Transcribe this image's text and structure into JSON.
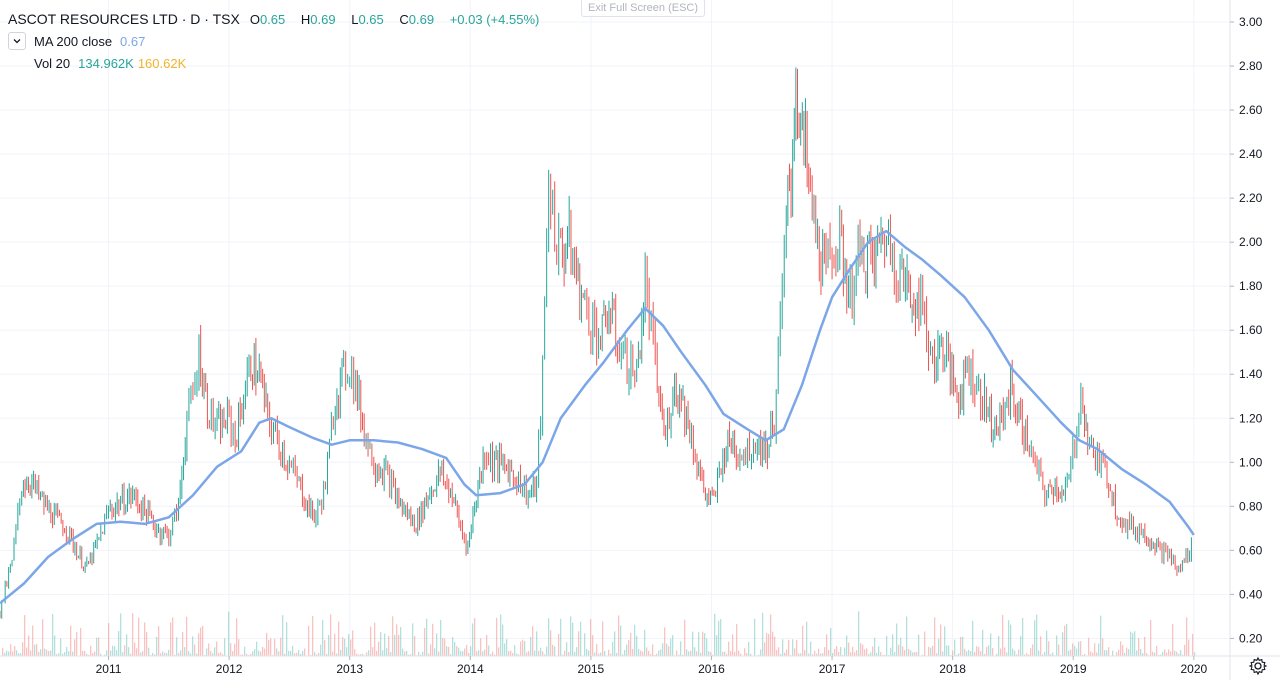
{
  "header": {
    "title": "ASCOT RESOURCES LTD · D · TSX",
    "ohlc": [
      {
        "label": "O",
        "value": "0.65"
      },
      {
        "label": "H",
        "value": "0.69"
      },
      {
        "label": "L",
        "value": "0.65"
      },
      {
        "label": "C",
        "value": "0.69"
      }
    ],
    "change": "+0.03 (+4.55%)"
  },
  "indicators": {
    "ma": {
      "name": "MA 200 close",
      "value": "0.67",
      "color": "#7ba6e8"
    },
    "vol": {
      "name": "Vol 20",
      "value1": "134.962K",
      "value2": "160.62K",
      "color1": "#26a69a",
      "color2": "#f0b429"
    }
  },
  "exit_fullscreen": "Exit Full Screen (ESC)",
  "colors": {
    "up": "#26a69a",
    "down": "#ef5350",
    "ma": "#7ba6e8",
    "grid": "#f0f3fa",
    "axis_text": "#131722"
  },
  "chart_data": {
    "type": "line",
    "x_axis_labels": [
      "2011",
      "2012",
      "2013",
      "2014",
      "2015",
      "2016",
      "2017",
      "2018",
      "2019",
      "2020"
    ],
    "y_ticks": [
      "0.20",
      "0.40",
      "0.60",
      "0.80",
      "1.00",
      "1.20",
      "1.40",
      "1.60",
      "1.80",
      "2.00",
      "2.20",
      "2.40",
      "2.60",
      "2.80",
      "3.00"
    ],
    "ylim": [
      0.12,
      3.1
    ],
    "xlim": [
      2010.1,
      2020.3
    ],
    "series": [
      {
        "name": "price",
        "style": "candles-approx",
        "points": [
          [
            2010.1,
            0.32
          ],
          [
            2010.2,
            0.55
          ],
          [
            2010.28,
            0.9
          ],
          [
            2010.35,
            0.92
          ],
          [
            2010.45,
            0.82
          ],
          [
            2010.55,
            0.75
          ],
          [
            2010.65,
            0.7
          ],
          [
            2010.75,
            0.58
          ],
          [
            2010.82,
            0.52
          ],
          [
            2010.92,
            0.65
          ],
          [
            2011.0,
            0.78
          ],
          [
            2011.1,
            0.82
          ],
          [
            2011.2,
            0.85
          ],
          [
            2011.3,
            0.78
          ],
          [
            2011.4,
            0.7
          ],
          [
            2011.5,
            0.67
          ],
          [
            2011.58,
            0.8
          ],
          [
            2011.65,
            1.2
          ],
          [
            2011.7,
            1.3
          ],
          [
            2011.75,
            1.5
          ],
          [
            2011.82,
            1.25
          ],
          [
            2011.9,
            1.15
          ],
          [
            2012.0,
            1.2
          ],
          [
            2012.05,
            1.1
          ],
          [
            2012.12,
            1.3
          ],
          [
            2012.18,
            1.45
          ],
          [
            2012.25,
            1.4
          ],
          [
            2012.32,
            1.2
          ],
          [
            2012.4,
            1.1
          ],
          [
            2012.5,
            0.98
          ],
          [
            2012.58,
            0.9
          ],
          [
            2012.65,
            0.8
          ],
          [
            2012.72,
            0.75
          ],
          [
            2012.8,
            0.9
          ],
          [
            2012.88,
            1.3
          ],
          [
            2012.95,
            1.4
          ],
          [
            2013.0,
            1.45
          ],
          [
            2013.05,
            1.35
          ],
          [
            2013.12,
            1.15
          ],
          [
            2013.2,
            1.0
          ],
          [
            2013.3,
            0.95
          ],
          [
            2013.38,
            0.85
          ],
          [
            2013.45,
            0.78
          ],
          [
            2013.55,
            0.72
          ],
          [
            2013.65,
            0.85
          ],
          [
            2013.75,
            0.95
          ],
          [
            2013.85,
            0.85
          ],
          [
            2013.92,
            0.7
          ],
          [
            2013.98,
            0.62
          ],
          [
            2014.05,
            0.85
          ],
          [
            2014.12,
            1.05
          ],
          [
            2014.2,
            1.0
          ],
          [
            2014.3,
            0.98
          ],
          [
            2014.4,
            0.92
          ],
          [
            2014.48,
            0.85
          ],
          [
            2014.55,
            0.9
          ],
          [
            2014.6,
            1.4
          ],
          [
            2014.65,
            2.3
          ],
          [
            2014.7,
            2.05
          ],
          [
            2014.75,
            1.95
          ],
          [
            2014.82,
            2.0
          ],
          [
            2014.88,
            1.85
          ],
          [
            2014.95,
            1.7
          ],
          [
            2015.0,
            1.65
          ],
          [
            2015.08,
            1.55
          ],
          [
            2015.15,
            1.7
          ],
          [
            2015.22,
            1.55
          ],
          [
            2015.3,
            1.45
          ],
          [
            2015.38,
            1.4
          ],
          [
            2015.45,
            1.8
          ],
          [
            2015.5,
            1.6
          ],
          [
            2015.55,
            1.35
          ],
          [
            2015.62,
            1.1
          ],
          [
            2015.68,
            1.35
          ],
          [
            2015.75,
            1.3
          ],
          [
            2015.82,
            1.15
          ],
          [
            2015.88,
            1.0
          ],
          [
            2015.95,
            0.85
          ],
          [
            2016.02,
            0.82
          ],
          [
            2016.08,
            1.0
          ],
          [
            2016.15,
            1.1
          ],
          [
            2016.22,
            1.05
          ],
          [
            2016.3,
            1.05
          ],
          [
            2016.38,
            1.1
          ],
          [
            2016.45,
            1.05
          ],
          [
            2016.52,
            1.2
          ],
          [
            2016.57,
            1.6
          ],
          [
            2016.62,
            2.1
          ],
          [
            2016.66,
            2.3
          ],
          [
            2016.7,
            2.75
          ],
          [
            2016.74,
            2.5
          ],
          [
            2016.78,
            2.4
          ],
          [
            2016.82,
            2.2
          ],
          [
            2016.88,
            2.0
          ],
          [
            2016.95,
            1.85
          ],
          [
            2017.0,
            2.0
          ],
          [
            2017.08,
            1.95
          ],
          [
            2017.15,
            1.75
          ],
          [
            2017.2,
            1.9
          ],
          [
            2017.28,
            1.95
          ],
          [
            2017.35,
            1.9
          ],
          [
            2017.42,
            2.05
          ],
          [
            2017.5,
            1.95
          ],
          [
            2017.58,
            1.85
          ],
          [
            2017.65,
            1.75
          ],
          [
            2017.72,
            1.75
          ],
          [
            2017.8,
            1.55
          ],
          [
            2017.85,
            1.45
          ],
          [
            2017.92,
            1.55
          ],
          [
            2017.98,
            1.4
          ],
          [
            2018.05,
            1.3
          ],
          [
            2018.12,
            1.45
          ],
          [
            2018.2,
            1.35
          ],
          [
            2018.28,
            1.25
          ],
          [
            2018.35,
            1.15
          ],
          [
            2018.42,
            1.2
          ],
          [
            2018.48,
            1.35
          ],
          [
            2018.55,
            1.2
          ],
          [
            2018.62,
            1.1
          ],
          [
            2018.7,
            0.95
          ],
          [
            2018.78,
            0.85
          ],
          [
            2018.85,
            0.9
          ],
          [
            2018.92,
            0.85
          ],
          [
            2018.98,
            0.95
          ],
          [
            2019.03,
            1.2
          ],
          [
            2019.08,
            1.3
          ],
          [
            2019.12,
            1.1
          ],
          [
            2019.2,
            1.0
          ],
          [
            2019.28,
            0.95
          ],
          [
            2019.35,
            0.8
          ],
          [
            2019.42,
            0.72
          ],
          [
            2019.5,
            0.7
          ],
          [
            2019.58,
            0.68
          ],
          [
            2019.65,
            0.65
          ],
          [
            2019.72,
            0.6
          ],
          [
            2019.8,
            0.58
          ],
          [
            2019.86,
            0.5
          ],
          [
            2019.92,
            0.55
          ],
          [
            2019.98,
            0.62
          ],
          [
            2020.0,
            0.69
          ]
        ]
      },
      {
        "name": "MA 200 close",
        "points": [
          [
            2010.1,
            0.36
          ],
          [
            2010.3,
            0.45
          ],
          [
            2010.5,
            0.57
          ],
          [
            2010.7,
            0.65
          ],
          [
            2010.9,
            0.72
          ],
          [
            2011.1,
            0.73
          ],
          [
            2011.3,
            0.72
          ],
          [
            2011.5,
            0.75
          ],
          [
            2011.7,
            0.85
          ],
          [
            2011.9,
            0.98
          ],
          [
            2012.1,
            1.05
          ],
          [
            2012.25,
            1.18
          ],
          [
            2012.35,
            1.2
          ],
          [
            2012.5,
            1.16
          ],
          [
            2012.7,
            1.11
          ],
          [
            2012.85,
            1.08
          ],
          [
            2013.0,
            1.1
          ],
          [
            2013.2,
            1.1
          ],
          [
            2013.4,
            1.09
          ],
          [
            2013.6,
            1.06
          ],
          [
            2013.8,
            1.02
          ],
          [
            2013.95,
            0.9
          ],
          [
            2014.05,
            0.85
          ],
          [
            2014.25,
            0.86
          ],
          [
            2014.45,
            0.9
          ],
          [
            2014.6,
            1.0
          ],
          [
            2014.75,
            1.2
          ],
          [
            2014.95,
            1.35
          ],
          [
            2015.1,
            1.45
          ],
          [
            2015.3,
            1.6
          ],
          [
            2015.45,
            1.7
          ],
          [
            2015.6,
            1.62
          ],
          [
            2015.75,
            1.5
          ],
          [
            2015.95,
            1.35
          ],
          [
            2016.1,
            1.22
          ],
          [
            2016.3,
            1.15
          ],
          [
            2016.45,
            1.1
          ],
          [
            2016.6,
            1.15
          ],
          [
            2016.75,
            1.35
          ],
          [
            2016.9,
            1.6
          ],
          [
            2017.0,
            1.75
          ],
          [
            2017.15,
            1.88
          ],
          [
            2017.3,
            2.0
          ],
          [
            2017.45,
            2.05
          ],
          [
            2017.6,
            1.98
          ],
          [
            2017.75,
            1.92
          ],
          [
            2017.9,
            1.85
          ],
          [
            2018.1,
            1.75
          ],
          [
            2018.3,
            1.6
          ],
          [
            2018.5,
            1.42
          ],
          [
            2018.7,
            1.3
          ],
          [
            2018.9,
            1.18
          ],
          [
            2019.05,
            1.1
          ],
          [
            2019.2,
            1.06
          ],
          [
            2019.4,
            0.97
          ],
          [
            2019.6,
            0.9
          ],
          [
            2019.8,
            0.82
          ],
          [
            2019.95,
            0.71
          ],
          [
            2020.0,
            0.67
          ]
        ]
      }
    ]
  }
}
